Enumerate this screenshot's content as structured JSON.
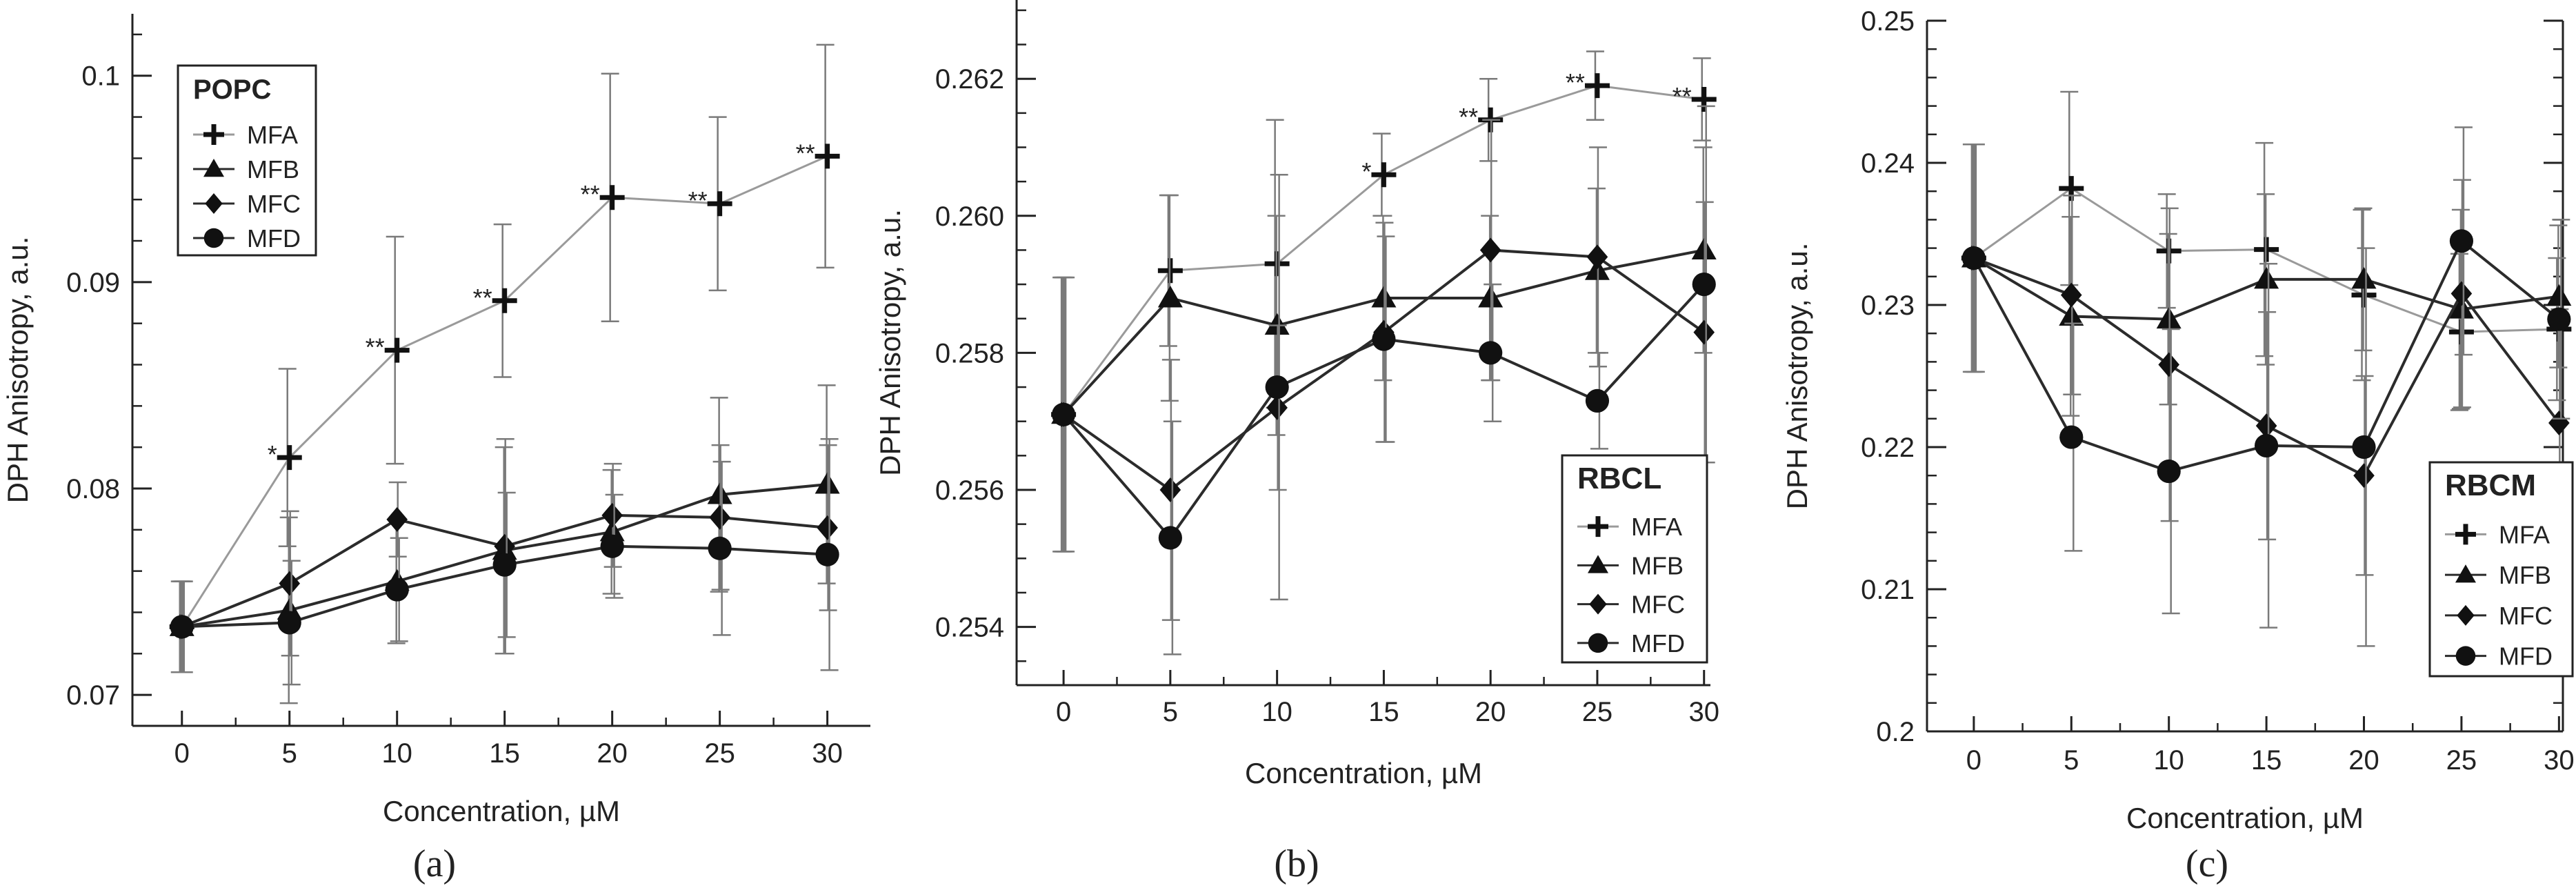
{
  "colors": {
    "axis": "#222222",
    "mfa": "#9a9a9a",
    "other": "#2b2b2b",
    "errorbar": "#7a7a7a",
    "text": "#222222"
  },
  "chart_data": [
    {
      "id": "a",
      "type": "line",
      "panel_label": "(a)",
      "xlabel": "Concentration, µM",
      "ylabel": "DPH Anisotropy, a.u.",
      "legend_title": "POPC",
      "legend_position": "top-left",
      "x": [
        0,
        5,
        10,
        15,
        20,
        25,
        30
      ],
      "xlim": [
        -2.3,
        32.0
      ],
      "ylim": [
        0.0685,
        0.103
      ],
      "yticks": [
        0.07,
        0.08,
        0.09,
        0.1
      ],
      "ytick_labels": [
        "0.07",
        "0.08",
        "0.09",
        "0.1"
      ],
      "minor_yticks": [
        0.072,
        0.074,
        0.076,
        0.078,
        0.082,
        0.084,
        0.086,
        0.088,
        0.092,
        0.094,
        0.096,
        0.098,
        0.102
      ],
      "series": [
        {
          "name": "MFA",
          "marker": "plus",
          "values": [
            0.0733,
            0.0815,
            0.0867,
            0.0891,
            0.0941,
            0.0938,
            0.0961
          ],
          "errors": [
            0.0022,
            0.0043,
            0.0055,
            0.0037,
            0.006,
            0.0042,
            0.0054
          ],
          "annotations": [
            "",
            "*",
            "**",
            "**",
            "**",
            "**",
            "**"
          ]
        },
        {
          "name": "MFB",
          "marker": "triangle",
          "values": [
            0.0733,
            0.0741,
            0.0755,
            0.077,
            0.0779,
            0.0797,
            0.0802
          ],
          "errors": [
            0.0022,
            0.0045,
            0.003,
            0.005,
            0.003,
            0.0047,
            0.0048
          ]
        },
        {
          "name": "MFC",
          "marker": "diamond",
          "values": [
            0.0733,
            0.0754,
            0.0785,
            0.0772,
            0.0787,
            0.0786,
            0.0781
          ],
          "errors": [
            0.0022,
            0.0035,
            0.0018,
            0.0052,
            0.0025,
            0.0035,
            0.004
          ]
        },
        {
          "name": "MFD",
          "marker": "circle",
          "values": [
            0.0733,
            0.0735,
            0.0751,
            0.0763,
            0.0772,
            0.0771,
            0.0768
          ],
          "errors": [
            0.0022,
            0.003,
            0.0025,
            0.0035,
            0.0025,
            0.0042,
            0.0056
          ]
        }
      ]
    },
    {
      "id": "b",
      "type": "line",
      "panel_label": "(b)",
      "xlabel": "Concentration, µM",
      "ylabel": "DPH Anisotropy, a.u.",
      "legend_title": "RBCL",
      "legend_position": "bottom-right",
      "x": [
        0,
        5,
        10,
        15,
        20,
        25,
        30
      ],
      "xlim": [
        -2.2,
        30.3
      ],
      "ylim": [
        0.25315,
        0.26315
      ],
      "yticks": [
        0.254,
        0.256,
        0.258,
        0.26,
        0.262
      ],
      "ytick_labels": [
        "0.254",
        "0.256",
        "0.258",
        "0.260",
        "0.262"
      ],
      "minor_yticks": [
        0.2535,
        0.2545,
        0.255,
        0.2555,
        0.2565,
        0.257,
        0.2575,
        0.2585,
        0.259,
        0.2595,
        0.2605,
        0.261,
        0.2615,
        0.2625,
        0.263
      ],
      "series": [
        {
          "name": "MFA",
          "marker": "plus",
          "values": [
            0.2571,
            0.2592,
            0.2593,
            0.2606,
            0.2614,
            0.2619,
            0.2617
          ],
          "errors": [
            0.002,
            0.0011,
            0.0021,
            0.0006,
            0.0006,
            0.0005,
            0.0006
          ],
          "annotations": [
            "",
            "",
            "",
            "*",
            "**",
            "**",
            "**"
          ]
        },
        {
          "name": "MFB",
          "marker": "triangle",
          "values": [
            0.2571,
            0.2588,
            0.2584,
            0.2588,
            0.2588,
            0.2592,
            0.2595
          ],
          "errors": [
            0.002,
            0.0015,
            0.0016,
            0.0012,
            0.0012,
            0.0012,
            0.0015
          ]
        },
        {
          "name": "MFC",
          "marker": "diamond",
          "values": [
            0.2571,
            0.256,
            0.2572,
            0.2583,
            0.2595,
            0.2594,
            0.2583
          ],
          "errors": [
            0.002,
            0.0019,
            0.0012,
            0.0016,
            0.0019,
            0.0016,
            0.0019
          ]
        },
        {
          "name": "MFD",
          "marker": "circle",
          "values": [
            0.2571,
            0.2553,
            0.2575,
            0.2582,
            0.258,
            0.2573,
            0.259
          ],
          "errors": [
            0.002,
            0.0017,
            0.0031,
            0.0015,
            0.001,
            0.0007,
            0.0026
          ]
        }
      ]
    },
    {
      "id": "c",
      "type": "line",
      "panel_label": "(c)",
      "xlabel": "Concentration, µM",
      "ylabel": "DPH Anisotropy, a.u.",
      "legend_title": "RBCM",
      "legend_position": "bottom-right",
      "x": [
        0,
        5,
        10,
        15,
        20,
        25,
        30
      ],
      "xlim": [
        -2.4,
        30.2
      ],
      "ylim": [
        0.2,
        0.25
      ],
      "yticks": [
        0.2,
        0.21,
        0.22,
        0.23,
        0.24,
        0.25
      ],
      "ytick_labels": [
        "0.2",
        "0.21",
        "0.22",
        "0.23",
        "0.24",
        "0.25"
      ],
      "minor_yticks": [
        0.202,
        0.204,
        0.206,
        0.208,
        0.212,
        0.214,
        0.216,
        0.218,
        0.222,
        0.224,
        0.226,
        0.228,
        0.232,
        0.234,
        0.236,
        0.238,
        0.242,
        0.244,
        0.246,
        0.248
      ],
      "series": [
        {
          "name": "MFA",
          "marker": "plus",
          "values": [
            0.2333,
            0.2382,
            0.2338,
            0.2339,
            0.2307,
            0.2281,
            0.2283
          ],
          "errors": [
            0.008,
            0.0068,
            0.004,
            0.0075,
            0.006,
            0.0055,
            0.005
          ]
        },
        {
          "name": "MFB",
          "marker": "triangle",
          "values": [
            0.2333,
            0.2292,
            0.229,
            0.2318,
            0.2318,
            0.2297,
            0.2306
          ],
          "errors": [
            0.008,
            0.007,
            0.006,
            0.006,
            0.005,
            0.007,
            0.005
          ]
        },
        {
          "name": "MFC",
          "marker": "diamond",
          "values": [
            0.2333,
            0.2307,
            0.2258,
            0.2215,
            0.218,
            0.2308,
            0.2217
          ],
          "errors": [
            0.008,
            0.007,
            0.011,
            0.008,
            0.007,
            0.008,
            0.008
          ]
        },
        {
          "name": "MFD",
          "marker": "circle",
          "values": [
            0.2333,
            0.2207,
            0.2183,
            0.2201,
            0.22,
            0.2345,
            0.229
          ],
          "errors": [
            0.008,
            0.008,
            0.01,
            0.0128,
            0.014,
            0.008,
            0.007
          ]
        }
      ]
    }
  ]
}
